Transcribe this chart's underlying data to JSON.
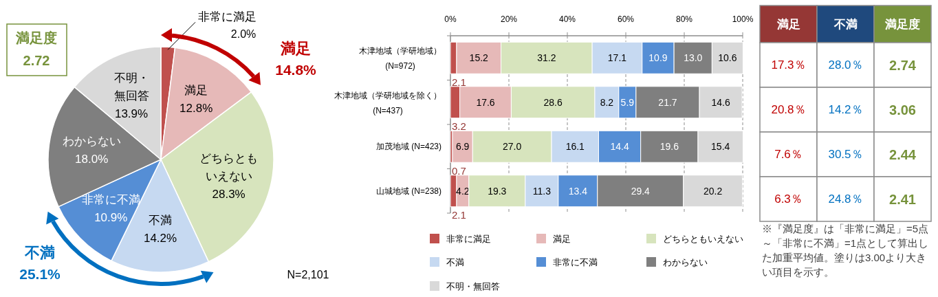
{
  "chart_data": [
    {
      "type": "pie",
      "categories": [
        "非常に満足",
        "満足",
        "どちらともいえない",
        "不満",
        "非常に不満",
        "わからない",
        "不明・無回答"
      ],
      "values": [
        2.0,
        12.8,
        28.3,
        14.2,
        10.9,
        18.0,
        13.9
      ],
      "colors": [
        "#c0504d",
        "#e6b9b8",
        "#d7e4bd",
        "#c6d9f1",
        "#558ed5",
        "#7f7f7f",
        "#d9d9d9"
      ],
      "value_labels": [
        "2.0%",
        "12.8%",
        "28.3%",
        "14.2%",
        "10.9%",
        "18.0%",
        "13.9%"
      ],
      "annotations": [
        "満足度",
        "2.72",
        "満足",
        "14.8%",
        "不満",
        "25.1%",
        "N=2,101"
      ]
    },
    {
      "type": "bar",
      "orientation": "horizontal",
      "stacked": true,
      "categories": [
        "木津地域（学研地域）(N=972)",
        "木津地域（学研地域を除く）(N=437)",
        "加茂地域 (N=423)",
        "山城地域 (N=238)"
      ],
      "xlim": [
        0,
        100
      ],
      "xticks": [
        {
          "value": 0,
          "label": "0%"
        },
        {
          "value": 20,
          "label": "20%"
        },
        {
          "value": 40,
          "label": "40%"
        },
        {
          "value": 60,
          "label": "60%"
        },
        {
          "value": 80,
          "label": "80%"
        },
        {
          "value": 100,
          "label": "100%"
        }
      ],
      "grid": "x",
      "legend": "bottom",
      "series": [
        {
          "name": "非常に満足",
          "color": "#c0504d",
          "values": [
            2.1,
            3.2,
            0.7,
            2.1
          ],
          "value_labels": [
            "2.1",
            "3.2",
            "0.7",
            "2.1"
          ]
        },
        {
          "name": "満足",
          "color": "#e6b9b8",
          "values": [
            15.2,
            17.6,
            6.9,
            4.2
          ],
          "value_labels": [
            "15.2",
            "17.6",
            "6.9",
            "4.2"
          ]
        },
        {
          "name": "どちらともいえない",
          "color": "#d7e4bd",
          "values": [
            31.2,
            28.6,
            27.0,
            19.3
          ],
          "value_labels": [
            "31.2",
            "28.6",
            "27.0",
            "19.3"
          ]
        },
        {
          "name": "不満",
          "color": "#c6d9f1",
          "values": [
            17.1,
            8.2,
            16.1,
            11.3
          ],
          "value_labels": [
            "17.1",
            "8.2",
            "16.1",
            "11.3"
          ]
        },
        {
          "name": "非常に不満",
          "color": "#558ed5",
          "values": [
            10.9,
            5.9,
            14.4,
            13.4
          ],
          "value_labels": [
            "10.9",
            "5.9",
            "14.4",
            "13.4"
          ]
        },
        {
          "name": "わからない",
          "color": "#7f7f7f",
          "values": [
            13.0,
            21.7,
            19.6,
            29.4
          ],
          "value_labels": [
            "13.0",
            "21.7",
            "19.6",
            "29.4"
          ]
        },
        {
          "name": "不明・無回答",
          "color": "#d9d9d9",
          "values": [
            10.6,
            14.6,
            15.4,
            20.2
          ],
          "value_labels": [
            "10.6",
            "14.6",
            "15.4",
            "20.2"
          ]
        }
      ]
    },
    {
      "type": "other",
      "categories": [
        "満足",
        "不満",
        "満足度"
      ],
      "cell_labels": [
        [
          "17.3％",
          "28.0％",
          "2.74"
        ],
        [
          "20.8％",
          "14.2％",
          "3.06"
        ],
        [
          "7.6％",
          "30.5％",
          "2.44"
        ],
        [
          "6.3％",
          "24.8％",
          "2.41"
        ]
      ],
      "annotations": [
        "※『満足度』は「非常に満足」=5点～「非常に不満」=1点として算出した加重平均値。塗りは3.00より大きい項目を示す。"
      ]
    }
  ]
}
